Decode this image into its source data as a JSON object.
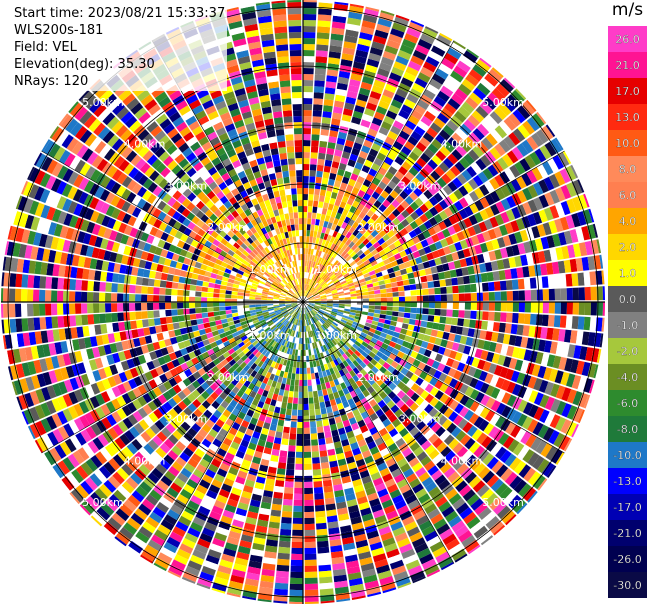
{
  "info": {
    "start_time": "Start time: 2023/08/21 15:33:37",
    "instrument": "WLS200s-181",
    "field": "Field: VEL",
    "elevation": "Elevation(deg): 35.30",
    "nrays": "NRays: 120"
  },
  "colorbar": {
    "unit": "m/s",
    "ticks": [
      "26.0",
      "21.0",
      "17.0",
      "13.0",
      "10.0",
      "8.0",
      "6.0",
      "4.0",
      "2.0",
      "1.0",
      "0.0",
      "-1.0",
      "-2.0",
      "-4.0",
      "-6.0",
      "-8.0",
      "-10.0",
      "-13.0",
      "-17.0",
      "-21.0",
      "-26.0",
      "-30.0"
    ],
    "colors": [
      "#ff3cc8",
      "#ff1493",
      "#e60000",
      "#ff2a10",
      "#ff5a14",
      "#ff8a5a",
      "#ff7f50",
      "#ffa500",
      "#ffd700",
      "#ffff00",
      "#5a5a5a",
      "#808080",
      "#a6c83c",
      "#6b8e23",
      "#2e8b2e",
      "#1f7a3a",
      "#1e78c8",
      "#0000ff",
      "#0000b4",
      "#00006e",
      "#000050",
      "#0a0a46"
    ]
  },
  "chart_data": {
    "type": "ppi_radar",
    "field": "VEL",
    "unit": "m/s",
    "nrays": 120,
    "range_ring_labels": [
      "1.00km",
      "2.00km",
      "3.00km",
      "4.00km",
      "5.00km"
    ],
    "color_scale_min": -30.0,
    "color_scale_max": 26.0,
    "near_field_pattern": {
      "north": "positive (yellow/orange, ~2 to 6 m/s)",
      "south": "negative (green/blue, ~-4 to -10 m/s)"
    },
    "far_field": "noisy, all colors"
  }
}
